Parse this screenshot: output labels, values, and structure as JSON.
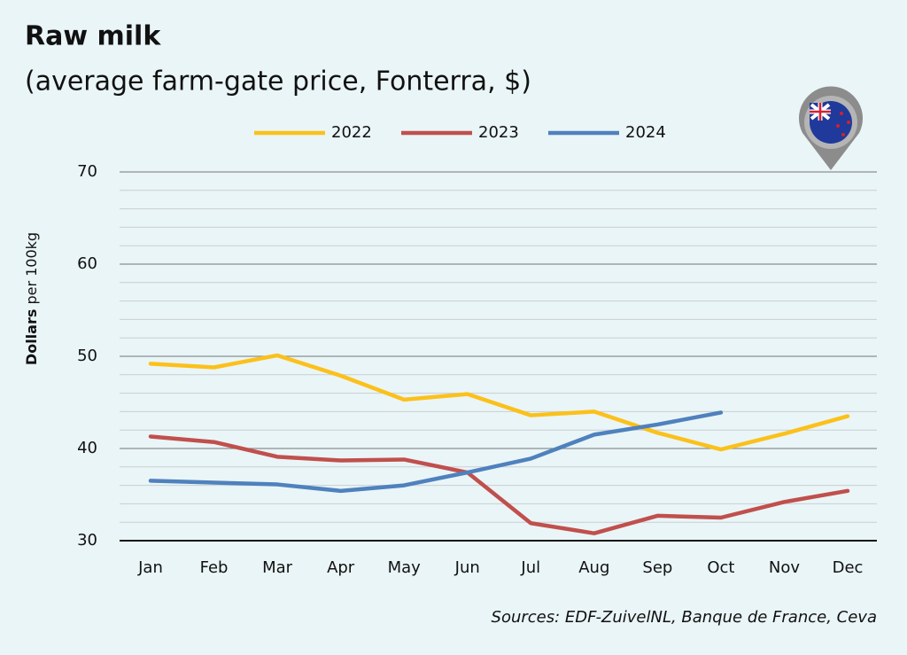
{
  "chart_data": {
    "type": "line",
    "title": "Raw milk",
    "subtitle": "(average farm-gate price, Fonterra, $)",
    "y_label": [
      "Dollars",
      "per 100kg"
    ],
    "source": "Sources: EDF-ZuivelNL, Banque de France, Ceva",
    "categories": [
      "Jan",
      "Feb",
      "Mar",
      "Apr",
      "May",
      "Jun",
      "Jul",
      "Aug",
      "Sep",
      "Oct",
      "Nov",
      "Dec"
    ],
    "series": [
      {
        "name": "2022",
        "color": "#fbc11b",
        "values": [
          49.2,
          48.8,
          50.1,
          47.9,
          45.3,
          45.9,
          43.6,
          44.0,
          41.7,
          39.9,
          41.6,
          43.5
        ]
      },
      {
        "name": "2023",
        "color": "#c0504d",
        "values": [
          41.3,
          40.7,
          39.1,
          38.7,
          38.8,
          37.4,
          31.9,
          30.8,
          32.7,
          32.5,
          34.2,
          35.4
        ]
      },
      {
        "name": "2024",
        "color": "#4f81bd",
        "values": [
          36.5,
          36.3,
          36.1,
          35.4,
          36.0,
          37.4,
          38.9,
          41.5,
          42.6,
          43.9,
          null,
          null
        ]
      }
    ],
    "ylim": [
      30,
      70
    ],
    "yticks": [
      30,
      40,
      50,
      60,
      70
    ],
    "minor_yticks": [
      32,
      34,
      36,
      38,
      42,
      44,
      46,
      48,
      52,
      54,
      56,
      58,
      62,
      64,
      66,
      68
    ],
    "grid": true,
    "legend": "top"
  }
}
